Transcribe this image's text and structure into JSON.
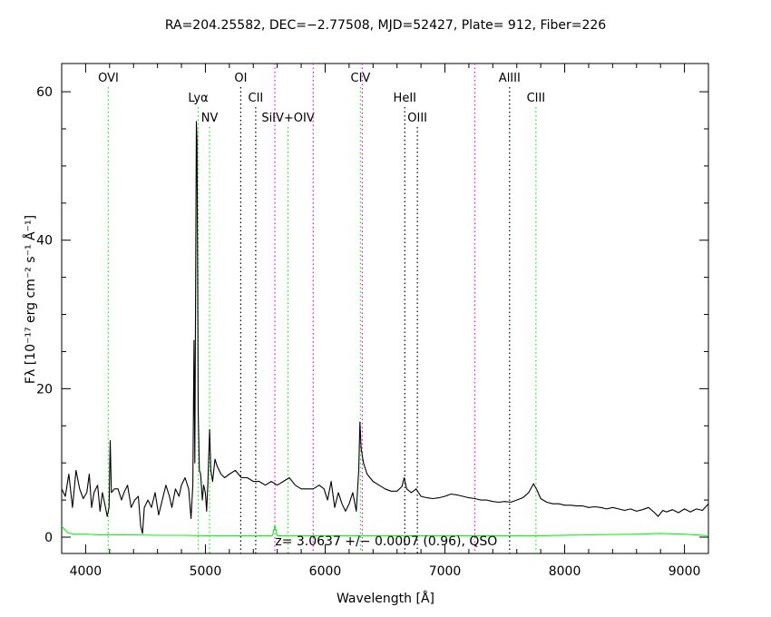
{
  "chart_data": {
    "type": "line",
    "title": "RA=204.25582, DEC=−2.77508, MJD=52427, Plate= 912, Fiber=226",
    "xlabel": "Wavelength [Å]",
    "ylabel": "Fλ [10⁻¹⁷ erg cm⁻² s⁻¹ Å⁻¹]",
    "xlim": [
      3800,
      9200
    ],
    "ylim": [
      -2.2,
      63.8
    ],
    "xticks": [
      4000,
      5000,
      6000,
      7000,
      8000,
      9000
    ],
    "yticks": [
      0,
      20,
      40,
      60
    ],
    "annotation": "z= 3.0637 +/− 0.0007 (0.96), QSO",
    "series": [
      {
        "color": "#000000",
        "points": [
          [
            3800,
            6.5
          ],
          [
            3830,
            5.5
          ],
          [
            3860,
            8.5
          ],
          [
            3890,
            4
          ],
          [
            3920,
            9
          ],
          [
            3950,
            6.5
          ],
          [
            3980,
            5.2
          ],
          [
            4010,
            6
          ],
          [
            4030,
            8.5
          ],
          [
            4050,
            4
          ],
          [
            4070,
            6
          ],
          [
            4100,
            7
          ],
          [
            4120,
            3.5
          ],
          [
            4140,
            6
          ],
          [
            4160,
            4.5
          ],
          [
            4180,
            2.8
          ],
          [
            4195,
            4
          ],
          [
            4205,
            13
          ],
          [
            4215,
            6
          ],
          [
            4240,
            6.5
          ],
          [
            4270,
            6.5
          ],
          [
            4300,
            5
          ],
          [
            4320,
            6
          ],
          [
            4350,
            7
          ],
          [
            4380,
            4
          ],
          [
            4410,
            5
          ],
          [
            4440,
            5.5
          ],
          [
            4460,
            1.5
          ],
          [
            4475,
            0.5
          ],
          [
            4490,
            4
          ],
          [
            4520,
            5
          ],
          [
            4550,
            4
          ],
          [
            4580,
            6
          ],
          [
            4610,
            3
          ],
          [
            4640,
            5
          ],
          [
            4670,
            7
          ],
          [
            4700,
            5.5
          ],
          [
            4720,
            4
          ],
          [
            4750,
            6.5
          ],
          [
            4780,
            5.5
          ],
          [
            4800,
            7
          ],
          [
            4830,
            8
          ],
          [
            4860,
            6.5
          ],
          [
            4880,
            2.5
          ],
          [
            4895,
            7
          ],
          [
            4905,
            26.5
          ],
          [
            4912,
            10
          ],
          [
            4920,
            40
          ],
          [
            4925,
            56
          ],
          [
            4930,
            53.5
          ],
          [
            4935,
            35
          ],
          [
            4940,
            17
          ],
          [
            4950,
            9
          ],
          [
            4960,
            8.5
          ],
          [
            4975,
            5
          ],
          [
            4985,
            7
          ],
          [
            5000,
            6
          ],
          [
            5010,
            3.5
          ],
          [
            5020,
            7
          ],
          [
            5035,
            14.5
          ],
          [
            5045,
            9
          ],
          [
            5060,
            7.5
          ],
          [
            5080,
            10.5
          ],
          [
            5100,
            9.5
          ],
          [
            5130,
            8.5
          ],
          [
            5160,
            8
          ],
          [
            5200,
            8.5
          ],
          [
            5250,
            9
          ],
          [
            5300,
            8
          ],
          [
            5350,
            8
          ],
          [
            5400,
            7.5
          ],
          [
            5450,
            7.5
          ],
          [
            5500,
            7
          ],
          [
            5550,
            7.5
          ],
          [
            5600,
            7
          ],
          [
            5650,
            7.5
          ],
          [
            5700,
            8
          ],
          [
            5750,
            7
          ],
          [
            5800,
            6.5
          ],
          [
            5850,
            6.5
          ],
          [
            5900,
            6.5
          ],
          [
            5950,
            7
          ],
          [
            5990,
            6.5
          ],
          [
            6020,
            5
          ],
          [
            6050,
            7.5
          ],
          [
            6080,
            4
          ],
          [
            6110,
            6
          ],
          [
            6140,
            4.5
          ],
          [
            6170,
            3.5
          ],
          [
            6200,
            4.5
          ],
          [
            6230,
            6
          ],
          [
            6260,
            3.5
          ],
          [
            6280,
            9
          ],
          [
            6290,
            15.5
          ],
          [
            6300,
            12
          ],
          [
            6320,
            10
          ],
          [
            6350,
            8.5
          ],
          [
            6400,
            7.5
          ],
          [
            6450,
            7
          ],
          [
            6500,
            6.5
          ],
          [
            6550,
            6.2
          ],
          [
            6600,
            6.2
          ],
          [
            6640,
            6.8
          ],
          [
            6660,
            8
          ],
          [
            6680,
            6.5
          ],
          [
            6720,
            6
          ],
          [
            6760,
            6.5
          ],
          [
            6800,
            5.5
          ],
          [
            6850,
            5.3
          ],
          [
            6900,
            5.2
          ],
          [
            6950,
            5.3
          ],
          [
            7000,
            5.5
          ],
          [
            7050,
            5.8
          ],
          [
            7100,
            5.7
          ],
          [
            7150,
            5.5
          ],
          [
            7200,
            5.3
          ],
          [
            7250,
            5.2
          ],
          [
            7300,
            5
          ],
          [
            7350,
            5
          ],
          [
            7400,
            4.8
          ],
          [
            7450,
            4.7
          ],
          [
            7500,
            4.8
          ],
          [
            7550,
            4.7
          ],
          [
            7600,
            5
          ],
          [
            7650,
            5.3
          ],
          [
            7700,
            6
          ],
          [
            7740,
            7.2
          ],
          [
            7770,
            6.3
          ],
          [
            7800,
            5.2
          ],
          [
            7850,
            4.7
          ],
          [
            7900,
            4.5
          ],
          [
            7950,
            4.5
          ],
          [
            8000,
            4.3
          ],
          [
            8050,
            4.3
          ],
          [
            8100,
            4.2
          ],
          [
            8150,
            4.2
          ],
          [
            8200,
            4
          ],
          [
            8250,
            4.1
          ],
          [
            8300,
            4
          ],
          [
            8350,
            3.8
          ],
          [
            8400,
            4
          ],
          [
            8450,
            3.8
          ],
          [
            8500,
            3.6
          ],
          [
            8550,
            3.8
          ],
          [
            8600,
            3.5
          ],
          [
            8650,
            3.7
          ],
          [
            8700,
            4
          ],
          [
            8750,
            3.3
          ],
          [
            8780,
            2.8
          ],
          [
            8820,
            3.6
          ],
          [
            8850,
            3.4
          ],
          [
            8900,
            3.7
          ],
          [
            8950,
            3.3
          ],
          [
            9000,
            3.8
          ],
          [
            9050,
            3.4
          ],
          [
            9100,
            3.8
          ],
          [
            9150,
            3.6
          ],
          [
            9200,
            4.5
          ]
        ]
      },
      {
        "color": "#00ff00",
        "points": [
          [
            3800,
            1.5
          ],
          [
            3850,
            0.6
          ],
          [
            3900,
            0.4
          ],
          [
            4000,
            0.4
          ],
          [
            4100,
            0.3
          ],
          [
            4200,
            0.3
          ],
          [
            4400,
            0.3
          ],
          [
            4600,
            0.25
          ],
          [
            4800,
            0.25
          ],
          [
            5000,
            0.2
          ],
          [
            5300,
            0.2
          ],
          [
            5560,
            0.2
          ],
          [
            5580,
            1.6
          ],
          [
            5600,
            0.2
          ],
          [
            5800,
            0.2
          ],
          [
            6200,
            0.2
          ],
          [
            6600,
            0.2
          ],
          [
            7000,
            0.2
          ],
          [
            7500,
            0.2
          ],
          [
            7800,
            0.2
          ],
          [
            8200,
            0.3
          ],
          [
            8600,
            0.4
          ],
          [
            8800,
            0.5
          ],
          [
            9000,
            0.4
          ],
          [
            9200,
            0.2
          ]
        ]
      }
    ],
    "lines": [
      {
        "x": 4190,
        "color": "#00ff00",
        "label": "OVI",
        "row": 1
      },
      {
        "x": 4940,
        "color": "#00ff00",
        "label": "Lyα",
        "row": 2
      },
      {
        "x": 5035,
        "color": "#00ff00",
        "label": "NV",
        "row": 3
      },
      {
        "x": 5295,
        "color": "#000000",
        "label": "OI",
        "row": 1
      },
      {
        "x": 5420,
        "color": "#000000",
        "label": "CII",
        "row": 2
      },
      {
        "x": 5580,
        "color": "#ff00ff",
        "label": "",
        "row": 0
      },
      {
        "x": 5690,
        "color": "#00ff00",
        "label": "SiIV+OIV",
        "row": 3
      },
      {
        "x": 5900,
        "color": "#ff00ff",
        "label": "",
        "row": 0
      },
      {
        "x": 6295,
        "color": "#00ff00",
        "label": "CIV",
        "row": 1
      },
      {
        "x": 6310,
        "color": "#ff00ff",
        "label": "",
        "row": 0
      },
      {
        "x": 6665,
        "color": "#000000",
        "label": "HeII",
        "row": 2
      },
      {
        "x": 6770,
        "color": "#000000",
        "label": "OIII",
        "row": 3
      },
      {
        "x": 7250,
        "color": "#ff00ff",
        "label": "",
        "row": 0
      },
      {
        "x": 7540,
        "color": "#000000",
        "label": "AlIII",
        "row": 1
      },
      {
        "x": 7760,
        "color": "#00ff00",
        "label": "CIII",
        "row": 2
      }
    ]
  }
}
